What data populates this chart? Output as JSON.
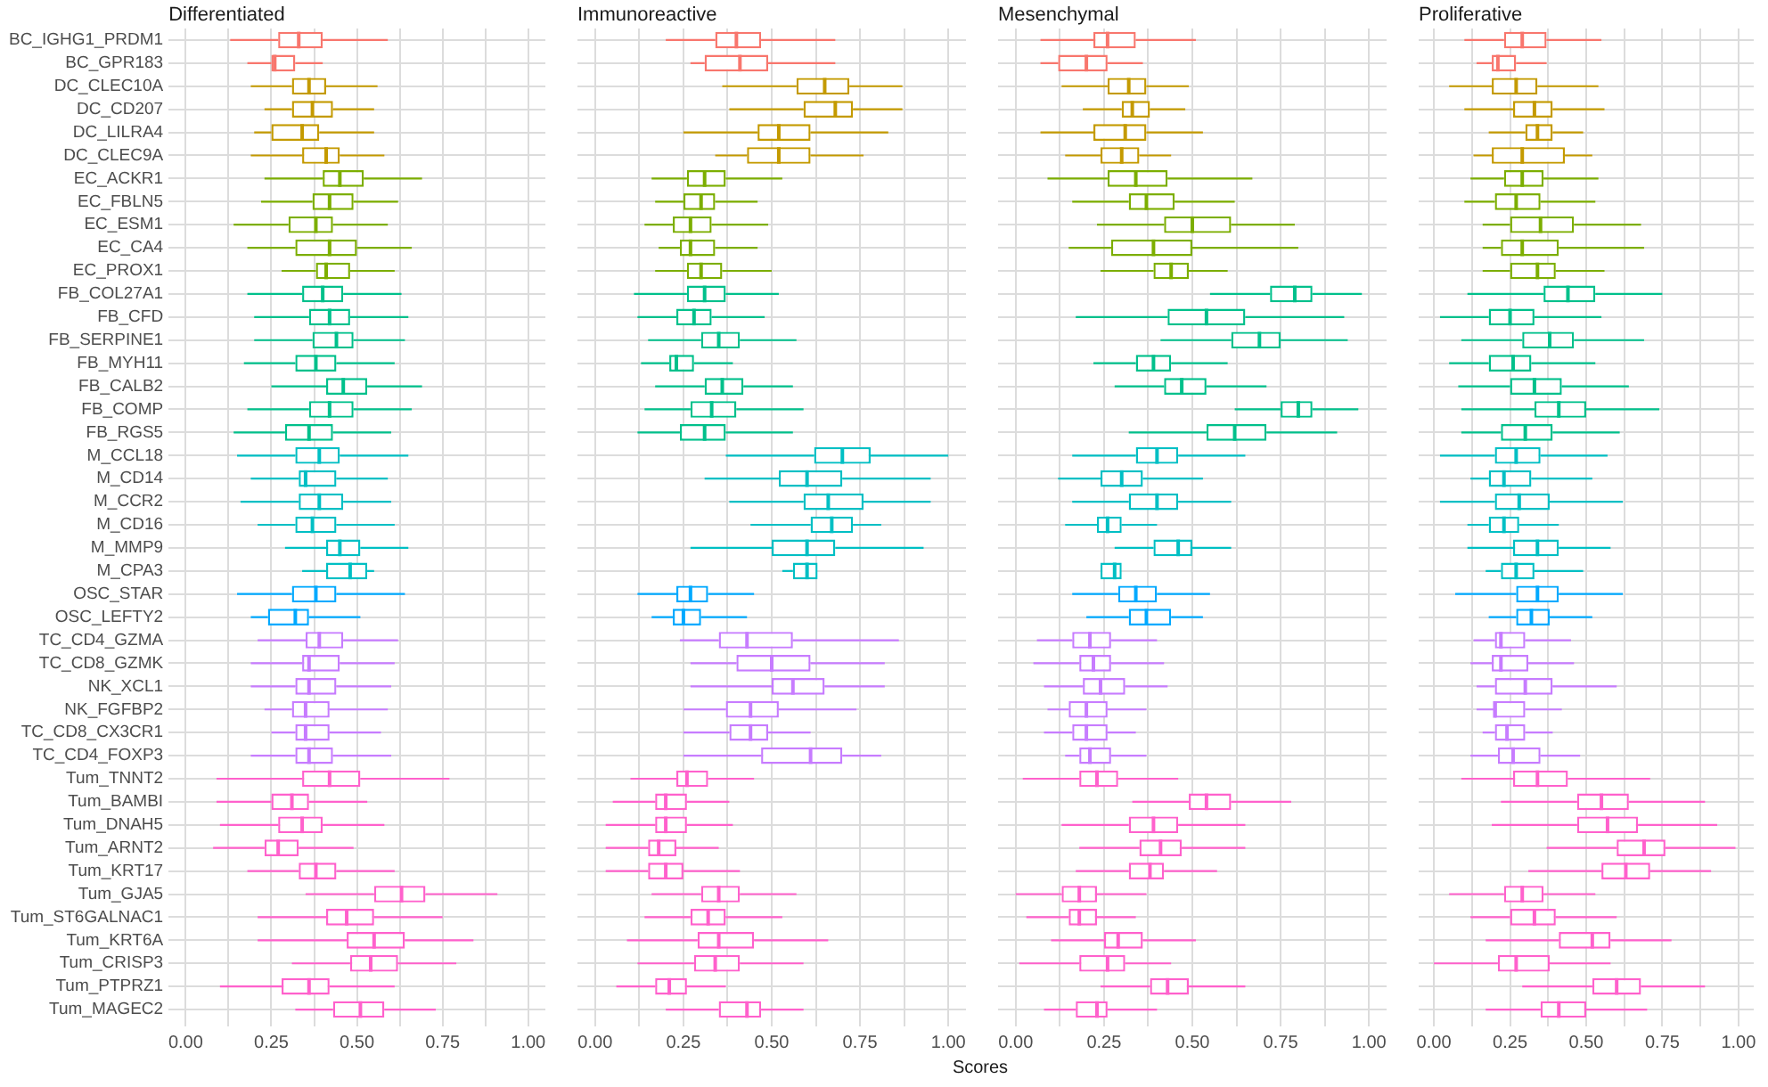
{
  "chart_data": [
    {
      "type": "box",
      "title": "Differentiated",
      "orientation": "horizontal",
      "grid": true,
      "categories": [
        "BC_IGHG1_PRDM1",
        "BC_GPR183",
        "DC_CLEC10A",
        "DC_CD207",
        "DC_LILRA4",
        "DC_CLEC9A",
        "EC_ACKR1",
        "EC_FBLN5",
        "EC_ESM1",
        "EC_CA4",
        "EC_PROX1",
        "FB_COL27A1",
        "FB_CFD",
        "FB_SERPINE1",
        "FB_MYH11",
        "FB_CALB2",
        "FB_COMP",
        "FB_RGS5",
        "M_CCL18",
        "M_CD14",
        "M_CCR2",
        "M_CD16",
        "M_MMP9",
        "M_CPA3",
        "OSC_STAR",
        "OSC_LEFTY2",
        "TC_CD4_GZMA",
        "TC_CD8_GZMK",
        "NK_XCL1",
        "NK_FGFBP2",
        "TC_CD8_CX3CR1",
        "TC_CD4_FOXP3",
        "Tum_TNNT2",
        "Tum_BAMBI",
        "Tum_DNAH5",
        "Tum_ARNT2",
        "Tum_KRT17",
        "Tum_GJA5",
        "Tum_ST6GALNAC1",
        "Tum_KRT6A",
        "Tum_CRISP3",
        "Tum_PTPRZ1",
        "Tum_MAGEC2"
      ],
      "colors": [
        "#f8766d",
        "#f8766d",
        "#c49a00",
        "#c49a00",
        "#c49a00",
        "#c49a00",
        "#7cae00",
        "#7cae00",
        "#7cae00",
        "#7cae00",
        "#7cae00",
        "#00c08b",
        "#00c08b",
        "#00c08b",
        "#00c08b",
        "#00c08b",
        "#00c08b",
        "#00c08b",
        "#00bfc4",
        "#00bfc4",
        "#00bfc4",
        "#00bfc4",
        "#00bfc4",
        "#00bfc4",
        "#00a9ff",
        "#00a9ff",
        "#c77cff",
        "#c77cff",
        "#c77cff",
        "#c77cff",
        "#c77cff",
        "#c77cff",
        "#ff61cc",
        "#ff61cc",
        "#ff61cc",
        "#ff61cc",
        "#ff61cc",
        "#ff61cc",
        "#ff61cc",
        "#ff61cc",
        "#ff61cc",
        "#ff61cc",
        "#ff61cc"
      ],
      "xlim": [
        -0.05,
        1.05
      ],
      "xticks": [
        {
          "value": 0,
          "label": "0.00"
        },
        {
          "value": 0.125,
          "label": null
        },
        {
          "value": 0.25,
          "label": "0.25"
        },
        {
          "value": 0.375,
          "label": null
        },
        {
          "value": 0.5,
          "label": "0.50"
        },
        {
          "value": 0.625,
          "label": null
        },
        {
          "value": 0.75,
          "label": "0.75"
        },
        {
          "value": 0.875,
          "label": null
        },
        {
          "value": 1,
          "label": "1.00"
        }
      ],
      "boxes": [
        {
          "low": 0.13,
          "q1": 0.27,
          "median": 0.33,
          "q3": 0.4,
          "high": 0.59
        },
        {
          "low": 0.18,
          "q1": 0.25,
          "median": 0.26,
          "q3": 0.32,
          "high": 0.4
        },
        {
          "low": 0.19,
          "q1": 0.31,
          "median": 0.36,
          "q3": 0.41,
          "high": 0.56
        },
        {
          "low": 0.23,
          "q1": 0.31,
          "median": 0.37,
          "q3": 0.43,
          "high": 0.55
        },
        {
          "low": 0.2,
          "q1": 0.25,
          "median": 0.34,
          "q3": 0.39,
          "high": 0.55
        },
        {
          "low": 0.19,
          "q1": 0.34,
          "median": 0.41,
          "q3": 0.45,
          "high": 0.58
        },
        {
          "low": 0.23,
          "q1": 0.4,
          "median": 0.45,
          "q3": 0.52,
          "high": 0.69
        },
        {
          "low": 0.22,
          "q1": 0.37,
          "median": 0.42,
          "q3": 0.49,
          "high": 0.62
        },
        {
          "low": 0.14,
          "q1": 0.3,
          "median": 0.38,
          "q3": 0.43,
          "high": 0.59
        },
        {
          "low": 0.18,
          "q1": 0.32,
          "median": 0.42,
          "q3": 0.5,
          "high": 0.66
        },
        {
          "low": 0.28,
          "q1": 0.38,
          "median": 0.41,
          "q3": 0.48,
          "high": 0.61
        },
        {
          "low": 0.18,
          "q1": 0.34,
          "median": 0.4,
          "q3": 0.46,
          "high": 0.63
        },
        {
          "low": 0.2,
          "q1": 0.36,
          "median": 0.42,
          "q3": 0.48,
          "high": 0.65
        },
        {
          "low": 0.2,
          "q1": 0.37,
          "median": 0.44,
          "q3": 0.49,
          "high": 0.64
        },
        {
          "low": 0.17,
          "q1": 0.32,
          "median": 0.38,
          "q3": 0.44,
          "high": 0.61
        },
        {
          "low": 0.25,
          "q1": 0.41,
          "median": 0.46,
          "q3": 0.53,
          "high": 0.69
        },
        {
          "low": 0.18,
          "q1": 0.36,
          "median": 0.42,
          "q3": 0.49,
          "high": 0.66
        },
        {
          "low": 0.14,
          "q1": 0.29,
          "median": 0.36,
          "q3": 0.43,
          "high": 0.6
        },
        {
          "low": 0.15,
          "q1": 0.32,
          "median": 0.39,
          "q3": 0.45,
          "high": 0.65
        },
        {
          "low": 0.19,
          "q1": 0.33,
          "median": 0.35,
          "q3": 0.44,
          "high": 0.59
        },
        {
          "low": 0.16,
          "q1": 0.33,
          "median": 0.39,
          "q3": 0.46,
          "high": 0.6
        },
        {
          "low": 0.21,
          "q1": 0.32,
          "median": 0.37,
          "q3": 0.44,
          "high": 0.61
        },
        {
          "low": 0.29,
          "q1": 0.41,
          "median": 0.45,
          "q3": 0.51,
          "high": 0.65
        },
        {
          "low": 0.34,
          "q1": 0.41,
          "median": 0.48,
          "q3": 0.53,
          "high": 0.55
        },
        {
          "low": 0.15,
          "q1": 0.31,
          "median": 0.38,
          "q3": 0.44,
          "high": 0.64
        },
        {
          "low": 0.19,
          "q1": 0.24,
          "median": 0.32,
          "q3": 0.36,
          "high": 0.51
        },
        {
          "low": 0.21,
          "q1": 0.35,
          "median": 0.39,
          "q3": 0.46,
          "high": 0.62
        },
        {
          "low": 0.19,
          "q1": 0.34,
          "median": 0.36,
          "q3": 0.45,
          "high": 0.61
        },
        {
          "low": 0.19,
          "q1": 0.32,
          "median": 0.36,
          "q3": 0.44,
          "high": 0.6
        },
        {
          "low": 0.23,
          "q1": 0.31,
          "median": 0.35,
          "q3": 0.42,
          "high": 0.59
        },
        {
          "low": 0.25,
          "q1": 0.32,
          "median": 0.35,
          "q3": 0.42,
          "high": 0.57
        },
        {
          "low": 0.19,
          "q1": 0.32,
          "median": 0.36,
          "q3": 0.43,
          "high": 0.6
        },
        {
          "low": 0.09,
          "q1": 0.34,
          "median": 0.42,
          "q3": 0.51,
          "high": 0.77
        },
        {
          "low": 0.09,
          "q1": 0.25,
          "median": 0.31,
          "q3": 0.36,
          "high": 0.53
        },
        {
          "low": 0.1,
          "q1": 0.27,
          "median": 0.34,
          "q3": 0.4,
          "high": 0.58
        },
        {
          "low": 0.08,
          "q1": 0.23,
          "median": 0.27,
          "q3": 0.33,
          "high": 0.49
        },
        {
          "low": 0.18,
          "q1": 0.33,
          "median": 0.38,
          "q3": 0.44,
          "high": 0.61
        },
        {
          "low": 0.35,
          "q1": 0.55,
          "median": 0.63,
          "q3": 0.7,
          "high": 0.91
        },
        {
          "low": 0.21,
          "q1": 0.41,
          "median": 0.47,
          "q3": 0.55,
          "high": 0.75
        },
        {
          "low": 0.21,
          "q1": 0.47,
          "median": 0.55,
          "q3": 0.64,
          "high": 0.84
        },
        {
          "low": 0.31,
          "q1": 0.48,
          "median": 0.54,
          "q3": 0.62,
          "high": 0.79
        },
        {
          "low": 0.1,
          "q1": 0.28,
          "median": 0.36,
          "q3": 0.42,
          "high": 0.61
        },
        {
          "low": 0.32,
          "q1": 0.43,
          "median": 0.51,
          "q3": 0.58,
          "high": 0.73
        }
      ]
    },
    {
      "type": "box",
      "title": "Immunoreactive",
      "orientation": "horizontal",
      "grid": true,
      "xlabel": "Scores",
      "categories": [
        null,
        null,
        null,
        null,
        null,
        null,
        null,
        null,
        null,
        null,
        null,
        null,
        null,
        null,
        null,
        null,
        null,
        null,
        null,
        null,
        null,
        null,
        null,
        null,
        null,
        null,
        null,
        null,
        null,
        null,
        null,
        null,
        null,
        null,
        null,
        null,
        null,
        null,
        null,
        null,
        null,
        null,
        null
      ],
      "colors": [
        "#f8766d",
        "#f8766d",
        "#c49a00",
        "#c49a00",
        "#c49a00",
        "#c49a00",
        "#7cae00",
        "#7cae00",
        "#7cae00",
        "#7cae00",
        "#7cae00",
        "#00c08b",
        "#00c08b",
        "#00c08b",
        "#00c08b",
        "#00c08b",
        "#00c08b",
        "#00c08b",
        "#00bfc4",
        "#00bfc4",
        "#00bfc4",
        "#00bfc4",
        "#00bfc4",
        "#00bfc4",
        "#00a9ff",
        "#00a9ff",
        "#c77cff",
        "#c77cff",
        "#c77cff",
        "#c77cff",
        "#c77cff",
        "#c77cff",
        "#ff61cc",
        "#ff61cc",
        "#ff61cc",
        "#ff61cc",
        "#ff61cc",
        "#ff61cc",
        "#ff61cc",
        "#ff61cc",
        "#ff61cc",
        "#ff61cc",
        "#ff61cc"
      ],
      "xlim": [
        -0.05,
        1.05
      ],
      "xticks": [
        {
          "value": 0,
          "label": "0.00"
        },
        {
          "value": 0.125,
          "label": null
        },
        {
          "value": 0.25,
          "label": "0.25"
        },
        {
          "value": 0.375,
          "label": null
        },
        {
          "value": 0.5,
          "label": "0.50"
        },
        {
          "value": 0.625,
          "label": null
        },
        {
          "value": 0.75,
          "label": "0.75"
        },
        {
          "value": 0.875,
          "label": null
        },
        {
          "value": 1,
          "label": "1.00"
        }
      ],
      "boxes": [
        {
          "low": 0.2,
          "q1": 0.34,
          "median": 0.4,
          "q3": 0.47,
          "high": 0.68
        },
        {
          "low": 0.27,
          "q1": 0.31,
          "median": 0.41,
          "q3": 0.49,
          "high": 0.68
        },
        {
          "low": 0.36,
          "q1": 0.57,
          "median": 0.65,
          "q3": 0.72,
          "high": 0.87
        },
        {
          "low": 0.38,
          "q1": 0.59,
          "median": 0.68,
          "q3": 0.73,
          "high": 0.87
        },
        {
          "low": 0.25,
          "q1": 0.46,
          "median": 0.52,
          "q3": 0.61,
          "high": 0.83
        },
        {
          "low": 0.34,
          "q1": 0.43,
          "median": 0.52,
          "q3": 0.61,
          "high": 0.76
        },
        {
          "low": 0.16,
          "q1": 0.26,
          "median": 0.31,
          "q3": 0.37,
          "high": 0.53
        },
        {
          "low": 0.17,
          "q1": 0.25,
          "median": 0.3,
          "q3": 0.34,
          "high": 0.46
        },
        {
          "low": 0.14,
          "q1": 0.22,
          "median": 0.27,
          "q3": 0.33,
          "high": 0.49
        },
        {
          "low": 0.18,
          "q1": 0.24,
          "median": 0.27,
          "q3": 0.34,
          "high": 0.46
        },
        {
          "low": 0.17,
          "q1": 0.26,
          "median": 0.3,
          "q3": 0.36,
          "high": 0.5
        },
        {
          "low": 0.11,
          "q1": 0.26,
          "median": 0.31,
          "q3": 0.37,
          "high": 0.52
        },
        {
          "low": 0.12,
          "q1": 0.23,
          "median": 0.28,
          "q3": 0.33,
          "high": 0.48
        },
        {
          "low": 0.15,
          "q1": 0.3,
          "median": 0.35,
          "q3": 0.41,
          "high": 0.57
        },
        {
          "low": 0.13,
          "q1": 0.21,
          "median": 0.23,
          "q3": 0.28,
          "high": 0.39
        },
        {
          "low": 0.17,
          "q1": 0.31,
          "median": 0.36,
          "q3": 0.42,
          "high": 0.56
        },
        {
          "low": 0.14,
          "q1": 0.27,
          "median": 0.33,
          "q3": 0.4,
          "high": 0.59
        },
        {
          "low": 0.12,
          "q1": 0.24,
          "median": 0.31,
          "q3": 0.37,
          "high": 0.56
        },
        {
          "low": 0.37,
          "q1": 0.62,
          "median": 0.7,
          "q3": 0.78,
          "high": 1.0
        },
        {
          "low": 0.31,
          "q1": 0.52,
          "median": 0.6,
          "q3": 0.7,
          "high": 0.95
        },
        {
          "low": 0.38,
          "q1": 0.59,
          "median": 0.66,
          "q3": 0.76,
          "high": 0.95
        },
        {
          "low": 0.44,
          "q1": 0.61,
          "median": 0.67,
          "q3": 0.73,
          "high": 0.81
        },
        {
          "low": 0.27,
          "q1": 0.5,
          "median": 0.6,
          "q3": 0.68,
          "high": 0.93
        },
        {
          "low": 0.53,
          "q1": 0.56,
          "median": 0.6,
          "q3": 0.63,
          "high": 0.63
        },
        {
          "low": 0.12,
          "q1": 0.23,
          "median": 0.27,
          "q3": 0.32,
          "high": 0.45
        },
        {
          "low": 0.16,
          "q1": 0.22,
          "median": 0.25,
          "q3": 0.3,
          "high": 0.43
        },
        {
          "low": 0.24,
          "q1": 0.35,
          "median": 0.43,
          "q3": 0.56,
          "high": 0.86
        },
        {
          "low": 0.27,
          "q1": 0.4,
          "median": 0.5,
          "q3": 0.61,
          "high": 0.82
        },
        {
          "low": 0.27,
          "q1": 0.5,
          "median": 0.56,
          "q3": 0.65,
          "high": 0.82
        },
        {
          "low": 0.25,
          "q1": 0.37,
          "median": 0.44,
          "q3": 0.52,
          "high": 0.74
        },
        {
          "low": 0.25,
          "q1": 0.38,
          "median": 0.44,
          "q3": 0.49,
          "high": 0.61
        },
        {
          "low": 0.25,
          "q1": 0.47,
          "median": 0.61,
          "q3": 0.7,
          "high": 0.81
        },
        {
          "low": 0.1,
          "q1": 0.23,
          "median": 0.26,
          "q3": 0.32,
          "high": 0.45
        },
        {
          "low": 0.05,
          "q1": 0.17,
          "median": 0.2,
          "q3": 0.26,
          "high": 0.38
        },
        {
          "low": 0.03,
          "q1": 0.17,
          "median": 0.2,
          "q3": 0.26,
          "high": 0.39
        },
        {
          "low": 0.03,
          "q1": 0.15,
          "median": 0.18,
          "q3": 0.23,
          "high": 0.35
        },
        {
          "low": 0.03,
          "q1": 0.15,
          "median": 0.2,
          "q3": 0.25,
          "high": 0.41
        },
        {
          "low": 0.16,
          "q1": 0.3,
          "median": 0.35,
          "q3": 0.41,
          "high": 0.57
        },
        {
          "low": 0.14,
          "q1": 0.27,
          "median": 0.32,
          "q3": 0.37,
          "high": 0.53
        },
        {
          "low": 0.09,
          "q1": 0.29,
          "median": 0.35,
          "q3": 0.45,
          "high": 0.66
        },
        {
          "low": 0.12,
          "q1": 0.28,
          "median": 0.34,
          "q3": 0.41,
          "high": 0.59
        },
        {
          "low": 0.06,
          "q1": 0.17,
          "median": 0.21,
          "q3": 0.26,
          "high": 0.37
        },
        {
          "low": 0.2,
          "q1": 0.35,
          "median": 0.43,
          "q3": 0.47,
          "high": 0.59
        }
      ]
    },
    {
      "type": "box",
      "title": "Mesenchymal",
      "orientation": "horizontal",
      "grid": true,
      "categories": [
        null,
        null,
        null,
        null,
        null,
        null,
        null,
        null,
        null,
        null,
        null,
        null,
        null,
        null,
        null,
        null,
        null,
        null,
        null,
        null,
        null,
        null,
        null,
        null,
        null,
        null,
        null,
        null,
        null,
        null,
        null,
        null,
        null,
        null,
        null,
        null,
        null,
        null,
        null,
        null,
        null,
        null,
        null
      ],
      "colors": [
        "#f8766d",
        "#f8766d",
        "#c49a00",
        "#c49a00",
        "#c49a00",
        "#c49a00",
        "#7cae00",
        "#7cae00",
        "#7cae00",
        "#7cae00",
        "#7cae00",
        "#00c08b",
        "#00c08b",
        "#00c08b",
        "#00c08b",
        "#00c08b",
        "#00c08b",
        "#00c08b",
        "#00bfc4",
        "#00bfc4",
        "#00bfc4",
        "#00bfc4",
        "#00bfc4",
        "#00bfc4",
        "#00a9ff",
        "#00a9ff",
        "#c77cff",
        "#c77cff",
        "#c77cff",
        "#c77cff",
        "#c77cff",
        "#c77cff",
        "#ff61cc",
        "#ff61cc",
        "#ff61cc",
        "#ff61cc",
        "#ff61cc",
        "#ff61cc",
        "#ff61cc",
        "#ff61cc",
        "#ff61cc",
        "#ff61cc",
        "#ff61cc"
      ],
      "xlim": [
        -0.05,
        1.05
      ],
      "xticks": [
        {
          "value": 0,
          "label": "0.00"
        },
        {
          "value": 0.125,
          "label": null
        },
        {
          "value": 0.25,
          "label": "0.25"
        },
        {
          "value": 0.375,
          "label": null
        },
        {
          "value": 0.5,
          "label": "0.50"
        },
        {
          "value": 0.625,
          "label": null
        },
        {
          "value": 0.75,
          "label": "0.75"
        },
        {
          "value": 0.875,
          "label": null
        },
        {
          "value": 1,
          "label": "1.00"
        }
      ],
      "boxes": [
        {
          "low": 0.07,
          "q1": 0.22,
          "median": 0.26,
          "q3": 0.34,
          "high": 0.51
        },
        {
          "low": 0.07,
          "q1": 0.12,
          "median": 0.2,
          "q3": 0.26,
          "high": 0.36
        },
        {
          "low": 0.13,
          "q1": 0.26,
          "median": 0.32,
          "q3": 0.37,
          "high": 0.49
        },
        {
          "low": 0.19,
          "q1": 0.3,
          "median": 0.33,
          "q3": 0.38,
          "high": 0.48
        },
        {
          "low": 0.07,
          "q1": 0.22,
          "median": 0.31,
          "q3": 0.37,
          "high": 0.53
        },
        {
          "low": 0.14,
          "q1": 0.24,
          "median": 0.3,
          "q3": 0.35,
          "high": 0.44
        },
        {
          "low": 0.09,
          "q1": 0.26,
          "median": 0.34,
          "q3": 0.43,
          "high": 0.67
        },
        {
          "low": 0.16,
          "q1": 0.32,
          "median": 0.37,
          "q3": 0.45,
          "high": 0.62
        },
        {
          "low": 0.23,
          "q1": 0.42,
          "median": 0.5,
          "q3": 0.61,
          "high": 0.79
        },
        {
          "low": 0.15,
          "q1": 0.27,
          "median": 0.39,
          "q3": 0.5,
          "high": 0.8
        },
        {
          "low": 0.24,
          "q1": 0.39,
          "median": 0.44,
          "q3": 0.49,
          "high": 0.6
        },
        {
          "low": 0.55,
          "q1": 0.72,
          "median": 0.79,
          "q3": 0.84,
          "high": 0.98
        },
        {
          "low": 0.17,
          "q1": 0.43,
          "median": 0.54,
          "q3": 0.65,
          "high": 0.93
        },
        {
          "low": 0.41,
          "q1": 0.61,
          "median": 0.69,
          "q3": 0.75,
          "high": 0.94
        },
        {
          "low": 0.22,
          "q1": 0.34,
          "median": 0.39,
          "q3": 0.44,
          "high": 0.6
        },
        {
          "low": 0.28,
          "q1": 0.42,
          "median": 0.47,
          "q3": 0.54,
          "high": 0.71
        },
        {
          "low": 0.62,
          "q1": 0.75,
          "median": 0.8,
          "q3": 0.84,
          "high": 0.97
        },
        {
          "low": 0.32,
          "q1": 0.54,
          "median": 0.62,
          "q3": 0.71,
          "high": 0.91
        },
        {
          "low": 0.16,
          "q1": 0.34,
          "median": 0.4,
          "q3": 0.46,
          "high": 0.65
        },
        {
          "low": 0.12,
          "q1": 0.24,
          "median": 0.3,
          "q3": 0.36,
          "high": 0.53
        },
        {
          "low": 0.16,
          "q1": 0.32,
          "median": 0.4,
          "q3": 0.46,
          "high": 0.61
        },
        {
          "low": 0.14,
          "q1": 0.23,
          "median": 0.26,
          "q3": 0.3,
          "high": 0.4
        },
        {
          "low": 0.28,
          "q1": 0.39,
          "median": 0.46,
          "q3": 0.5,
          "high": 0.61
        },
        {
          "low": 0.24,
          "q1": 0.24,
          "median": 0.28,
          "q3": 0.3,
          "high": 0.3
        },
        {
          "low": 0.16,
          "q1": 0.29,
          "median": 0.34,
          "q3": 0.4,
          "high": 0.55
        },
        {
          "low": 0.2,
          "q1": 0.32,
          "median": 0.37,
          "q3": 0.44,
          "high": 0.53
        },
        {
          "low": 0.06,
          "q1": 0.16,
          "median": 0.21,
          "q3": 0.27,
          "high": 0.4
        },
        {
          "low": 0.05,
          "q1": 0.18,
          "median": 0.22,
          "q3": 0.27,
          "high": 0.42
        },
        {
          "low": 0.08,
          "q1": 0.19,
          "median": 0.24,
          "q3": 0.31,
          "high": 0.43
        },
        {
          "low": 0.09,
          "q1": 0.15,
          "median": 0.2,
          "q3": 0.26,
          "high": 0.37
        },
        {
          "low": 0.08,
          "q1": 0.16,
          "median": 0.2,
          "q3": 0.26,
          "high": 0.34
        },
        {
          "low": 0.14,
          "q1": 0.18,
          "median": 0.21,
          "q3": 0.27,
          "high": 0.37
        },
        {
          "low": 0.02,
          "q1": 0.18,
          "median": 0.23,
          "q3": 0.29,
          "high": 0.46
        },
        {
          "low": 0.33,
          "q1": 0.49,
          "median": 0.54,
          "q3": 0.61,
          "high": 0.78
        },
        {
          "low": 0.13,
          "q1": 0.32,
          "median": 0.39,
          "q3": 0.46,
          "high": 0.65
        },
        {
          "low": 0.18,
          "q1": 0.35,
          "median": 0.41,
          "q3": 0.47,
          "high": 0.65
        },
        {
          "low": 0.17,
          "q1": 0.32,
          "median": 0.38,
          "q3": 0.42,
          "high": 0.57
        },
        {
          "low": 0.0,
          "q1": 0.13,
          "median": 0.18,
          "q3": 0.23,
          "high": 0.37
        },
        {
          "low": 0.03,
          "q1": 0.15,
          "median": 0.18,
          "q3": 0.23,
          "high": 0.34
        },
        {
          "low": 0.1,
          "q1": 0.25,
          "median": 0.29,
          "q3": 0.36,
          "high": 0.51
        },
        {
          "low": 0.01,
          "q1": 0.18,
          "median": 0.26,
          "q3": 0.31,
          "high": 0.44
        },
        {
          "low": 0.24,
          "q1": 0.38,
          "median": 0.43,
          "q3": 0.49,
          "high": 0.65
        },
        {
          "low": 0.08,
          "q1": 0.17,
          "median": 0.23,
          "q3": 0.26,
          "high": 0.4
        }
      ]
    },
    {
      "type": "box",
      "title": "Proliferative",
      "orientation": "horizontal",
      "grid": true,
      "categories": [
        null,
        null,
        null,
        null,
        null,
        null,
        null,
        null,
        null,
        null,
        null,
        null,
        null,
        null,
        null,
        null,
        null,
        null,
        null,
        null,
        null,
        null,
        null,
        null,
        null,
        null,
        null,
        null,
        null,
        null,
        null,
        null,
        null,
        null,
        null,
        null,
        null,
        null,
        null,
        null,
        null,
        null,
        null
      ],
      "colors": [
        "#f8766d",
        "#f8766d",
        "#c49a00",
        "#c49a00",
        "#c49a00",
        "#c49a00",
        "#7cae00",
        "#7cae00",
        "#7cae00",
        "#7cae00",
        "#7cae00",
        "#00c08b",
        "#00c08b",
        "#00c08b",
        "#00c08b",
        "#00c08b",
        "#00c08b",
        "#00c08b",
        "#00bfc4",
        "#00bfc4",
        "#00bfc4",
        "#00bfc4",
        "#00bfc4",
        "#00bfc4",
        "#00a9ff",
        "#00a9ff",
        "#c77cff",
        "#c77cff",
        "#c77cff",
        "#c77cff",
        "#c77cff",
        "#c77cff",
        "#ff61cc",
        "#ff61cc",
        "#ff61cc",
        "#ff61cc",
        "#ff61cc",
        "#ff61cc",
        "#ff61cc",
        "#ff61cc",
        "#ff61cc",
        "#ff61cc",
        "#ff61cc"
      ],
      "xlim": [
        -0.05,
        1.05
      ],
      "xticks": [
        {
          "value": 0,
          "label": "0.00"
        },
        {
          "value": 0.125,
          "label": null
        },
        {
          "value": 0.25,
          "label": "0.25"
        },
        {
          "value": 0.375,
          "label": null
        },
        {
          "value": 0.5,
          "label": "0.50"
        },
        {
          "value": 0.625,
          "label": null
        },
        {
          "value": 0.75,
          "label": "0.75"
        },
        {
          "value": 0.875,
          "label": null
        },
        {
          "value": 1,
          "label": "1.00"
        }
      ],
      "boxes": [
        {
          "low": 0.1,
          "q1": 0.23,
          "median": 0.29,
          "q3": 0.37,
          "high": 0.55
        },
        {
          "low": 0.14,
          "q1": 0.19,
          "median": 0.21,
          "q3": 0.27,
          "high": 0.37
        },
        {
          "low": 0.05,
          "q1": 0.19,
          "median": 0.27,
          "q3": 0.34,
          "high": 0.54
        },
        {
          "low": 0.1,
          "q1": 0.26,
          "median": 0.33,
          "q3": 0.39,
          "high": 0.56
        },
        {
          "low": 0.18,
          "q1": 0.3,
          "median": 0.34,
          "q3": 0.39,
          "high": 0.49
        },
        {
          "low": 0.13,
          "q1": 0.19,
          "median": 0.29,
          "q3": 0.43,
          "high": 0.52
        },
        {
          "low": 0.12,
          "q1": 0.23,
          "median": 0.29,
          "q3": 0.36,
          "high": 0.54
        },
        {
          "low": 0.1,
          "q1": 0.2,
          "median": 0.27,
          "q3": 0.35,
          "high": 0.53
        },
        {
          "low": 0.16,
          "q1": 0.25,
          "median": 0.35,
          "q3": 0.46,
          "high": 0.68
        },
        {
          "low": 0.16,
          "q1": 0.22,
          "median": 0.29,
          "q3": 0.41,
          "high": 0.69
        },
        {
          "low": 0.16,
          "q1": 0.25,
          "median": 0.34,
          "q3": 0.4,
          "high": 0.56
        },
        {
          "low": 0.11,
          "q1": 0.36,
          "median": 0.44,
          "q3": 0.53,
          "high": 0.75
        },
        {
          "low": 0.02,
          "q1": 0.18,
          "median": 0.25,
          "q3": 0.33,
          "high": 0.55
        },
        {
          "low": 0.09,
          "q1": 0.29,
          "median": 0.38,
          "q3": 0.46,
          "high": 0.69
        },
        {
          "low": 0.05,
          "q1": 0.18,
          "median": 0.26,
          "q3": 0.32,
          "high": 0.53
        },
        {
          "low": 0.08,
          "q1": 0.25,
          "median": 0.33,
          "q3": 0.42,
          "high": 0.64
        },
        {
          "low": 0.09,
          "q1": 0.33,
          "median": 0.41,
          "q3": 0.5,
          "high": 0.74
        },
        {
          "low": 0.09,
          "q1": 0.22,
          "median": 0.3,
          "q3": 0.39,
          "high": 0.61
        },
        {
          "low": 0.02,
          "q1": 0.2,
          "median": 0.27,
          "q3": 0.35,
          "high": 0.57
        },
        {
          "low": 0.12,
          "q1": 0.18,
          "median": 0.23,
          "q3": 0.32,
          "high": 0.52
        },
        {
          "low": 0.02,
          "q1": 0.2,
          "median": 0.28,
          "q3": 0.38,
          "high": 0.62
        },
        {
          "low": 0.11,
          "q1": 0.18,
          "median": 0.23,
          "q3": 0.28,
          "high": 0.41
        },
        {
          "low": 0.11,
          "q1": 0.26,
          "median": 0.34,
          "q3": 0.41,
          "high": 0.58
        },
        {
          "low": 0.17,
          "q1": 0.22,
          "median": 0.27,
          "q3": 0.33,
          "high": 0.49
        },
        {
          "low": 0.07,
          "q1": 0.27,
          "median": 0.34,
          "q3": 0.41,
          "high": 0.62
        },
        {
          "low": 0.18,
          "q1": 0.27,
          "median": 0.32,
          "q3": 0.38,
          "high": 0.52
        },
        {
          "low": 0.13,
          "q1": 0.2,
          "median": 0.22,
          "q3": 0.3,
          "high": 0.45
        },
        {
          "low": 0.12,
          "q1": 0.19,
          "median": 0.22,
          "q3": 0.31,
          "high": 0.46
        },
        {
          "low": 0.14,
          "q1": 0.2,
          "median": 0.3,
          "q3": 0.39,
          "high": 0.6
        },
        {
          "low": 0.14,
          "q1": 0.2,
          "median": 0.2,
          "q3": 0.3,
          "high": 0.42
        },
        {
          "low": 0.16,
          "q1": 0.2,
          "median": 0.24,
          "q3": 0.3,
          "high": 0.39
        },
        {
          "low": 0.12,
          "q1": 0.21,
          "median": 0.26,
          "q3": 0.35,
          "high": 0.48
        },
        {
          "low": 0.09,
          "q1": 0.26,
          "median": 0.34,
          "q3": 0.44,
          "high": 0.71
        },
        {
          "low": 0.22,
          "q1": 0.47,
          "median": 0.55,
          "q3": 0.64,
          "high": 0.89
        },
        {
          "low": 0.19,
          "q1": 0.47,
          "median": 0.57,
          "q3": 0.67,
          "high": 0.93
        },
        {
          "low": 0.37,
          "q1": 0.6,
          "median": 0.69,
          "q3": 0.76,
          "high": 0.99
        },
        {
          "low": 0.31,
          "q1": 0.55,
          "median": 0.63,
          "q3": 0.71,
          "high": 0.91
        },
        {
          "low": 0.05,
          "q1": 0.23,
          "median": 0.29,
          "q3": 0.36,
          "high": 0.53
        },
        {
          "low": 0.12,
          "q1": 0.25,
          "median": 0.33,
          "q3": 0.4,
          "high": 0.6
        },
        {
          "low": 0.17,
          "q1": 0.41,
          "median": 0.52,
          "q3": 0.58,
          "high": 0.78
        },
        {
          "low": 0.0,
          "q1": 0.21,
          "median": 0.27,
          "q3": 0.38,
          "high": 0.58
        },
        {
          "low": 0.29,
          "q1": 0.52,
          "median": 0.6,
          "q3": 0.68,
          "high": 0.89
        },
        {
          "low": 0.17,
          "q1": 0.35,
          "median": 0.41,
          "q3": 0.5,
          "high": 0.7
        }
      ]
    }
  ]
}
